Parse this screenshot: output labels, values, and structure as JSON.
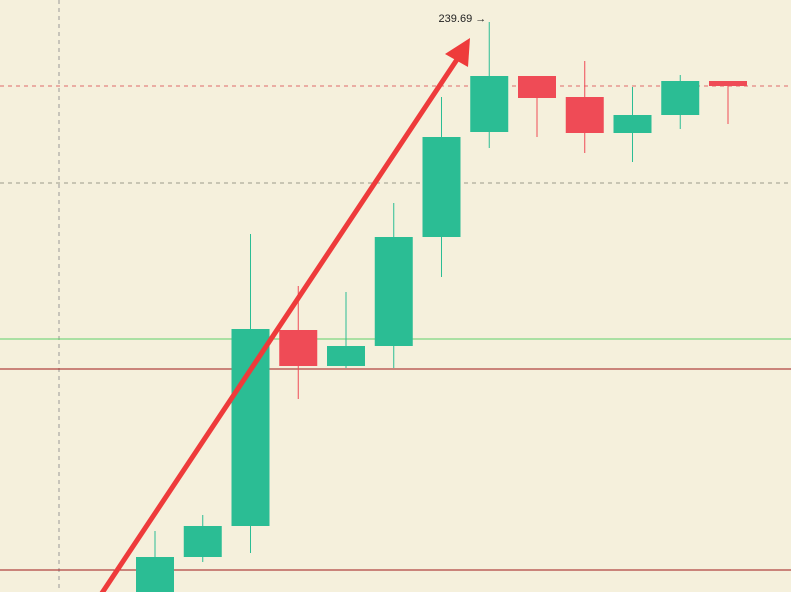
{
  "chart_data": {
    "type": "candlestick",
    "open": [
      182.39,
      186.19,
      189.29,
      208.89,
      205.29,
      207.29,
      218.19,
      228.69,
      234.29,
      232.19,
      228.59,
      230.39,
      233.79
    ],
    "high": [
      188.79,
      190.39,
      218.49,
      213.29,
      212.69,
      221.59,
      232.19,
      239.69,
      234.29,
      235.79,
      233.19,
      234.39,
      233.79
    ],
    "low": [
      181.89,
      185.69,
      186.59,
      201.99,
      205.09,
      205.09,
      214.19,
      227.09,
      228.19,
      226.59,
      225.69,
      228.99,
      229.49
    ],
    "close": [
      186.19,
      189.29,
      208.99,
      205.29,
      207.29,
      218.19,
      228.19,
      234.29,
      232.09,
      228.59,
      230.39,
      233.79,
      233.29
    ],
    "high_labels": [
      null,
      null,
      null,
      null,
      null,
      null,
      null,
      "239.69 →",
      null,
      null,
      null,
      null,
      null
    ],
    "up_color": "#2bbd94",
    "down_color": "#ef4b56",
    "ylim": [
      182.69,
      241.89
    ],
    "levels": [
      {
        "value": 233.29,
        "color": "#e06a6a",
        "dashed": true
      },
      {
        "value": 223.59,
        "color": "#9a9a8a",
        "dashed": true
      },
      {
        "value": 207.99,
        "color": "#5fd06a",
        "dashed": false
      },
      {
        "value": 204.99,
        "color": "#a01818",
        "dashed": false
      },
      {
        "value": 184.89,
        "color": "#a01818",
        "dashed": false
      }
    ]
  }
}
